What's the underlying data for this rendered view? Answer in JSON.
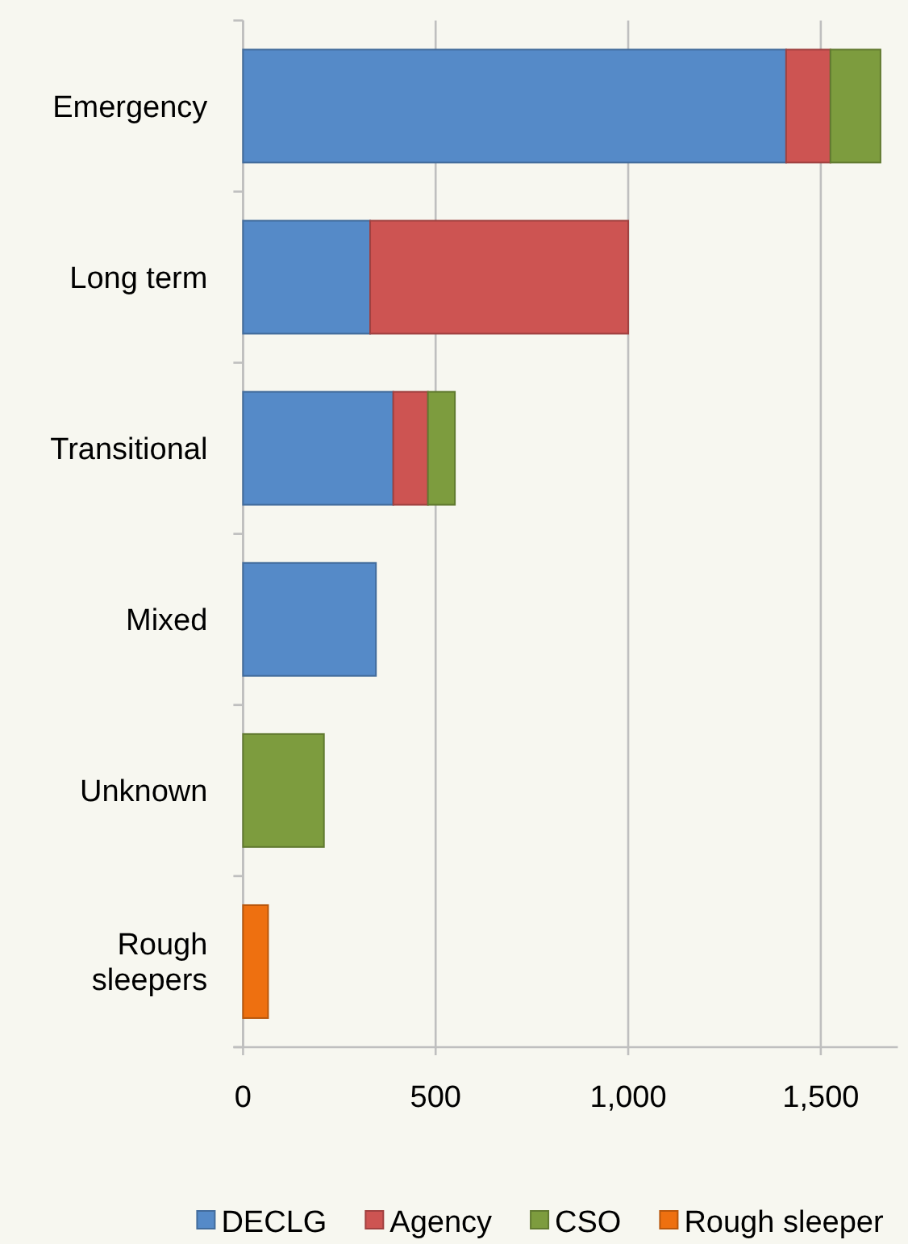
{
  "chart_data": {
    "type": "bar",
    "orientation": "horizontal",
    "stacked": true,
    "categories": [
      "Emergency",
      "Long term",
      "Transitional",
      "Mixed",
      "Unknown",
      "Rough sleepers"
    ],
    "series": [
      {
        "name": "DECLG",
        "color": "#558ac8",
        "values": [
          1410,
          330,
          390,
          345,
          null,
          null
        ]
      },
      {
        "name": "Agency",
        "color": "#cd5452",
        "values": [
          115,
          670,
          90,
          null,
          null,
          null
        ]
      },
      {
        "name": "CSO",
        "color": "#7d9c3e",
        "values": [
          130,
          null,
          70,
          null,
          210,
          null
        ]
      },
      {
        "name": "Rough sleeper",
        "color": "#ee7010",
        "values": [
          null,
          null,
          null,
          null,
          null,
          65
        ]
      }
    ],
    "xlim": [
      0,
      1700
    ],
    "xticks": [
      0,
      500,
      {
        "value": 1000,
        "label": "1,000"
      },
      {
        "value": 1500,
        "label": "1,500"
      }
    ],
    "grid": "x",
    "legend": "bottom"
  }
}
